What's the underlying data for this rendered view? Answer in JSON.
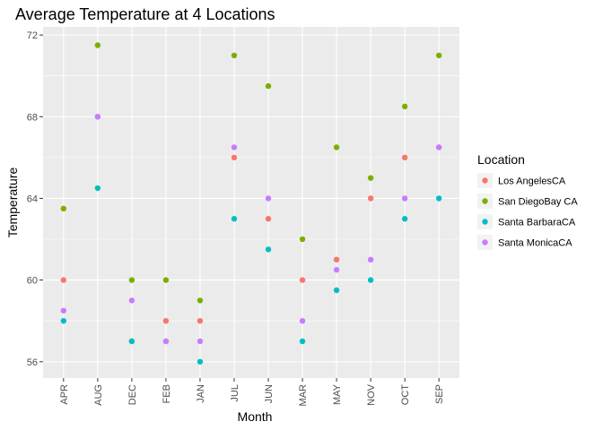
{
  "chart_data": {
    "type": "scatter",
    "title": "Average Temperature at 4 Locations",
    "xlabel": "Month",
    "ylabel": "Temperature",
    "categories": [
      "APR",
      "AUG",
      "DEC",
      "FEB",
      "JAN",
      "JUL",
      "JUN",
      "MAR",
      "MAY",
      "NOV",
      "OCT",
      "SEP"
    ],
    "ylim": [
      55.2,
      72.4
    ],
    "yticks": [
      56,
      60,
      64,
      68,
      72
    ],
    "grid": true,
    "legend": {
      "title": "Location",
      "position": "right"
    },
    "series": [
      {
        "name": "Los AngelesCA",
        "color": "#F8766D",
        "values": [
          60,
          68,
          57,
          58,
          58,
          66,
          63,
          60,
          61,
          64,
          66,
          66.5
        ]
      },
      {
        "name": "San DiegoBay CA",
        "color": "#7CAE00",
        "values": [
          63.5,
          71.5,
          60,
          60,
          59,
          71,
          69.5,
          62,
          66.5,
          65,
          68.5,
          71
        ]
      },
      {
        "name": "Santa BarbaraCA",
        "color": "#00BFC4",
        "values": [
          58,
          64.5,
          57,
          57,
          56,
          63,
          61.5,
          57,
          59.5,
          60,
          63,
          64
        ]
      },
      {
        "name": "Santa MonicaCA",
        "color": "#C77CFF",
        "values": [
          58.5,
          68,
          59,
          57,
          57,
          66.5,
          64,
          58,
          60.5,
          61,
          64,
          66.5
        ]
      }
    ]
  }
}
